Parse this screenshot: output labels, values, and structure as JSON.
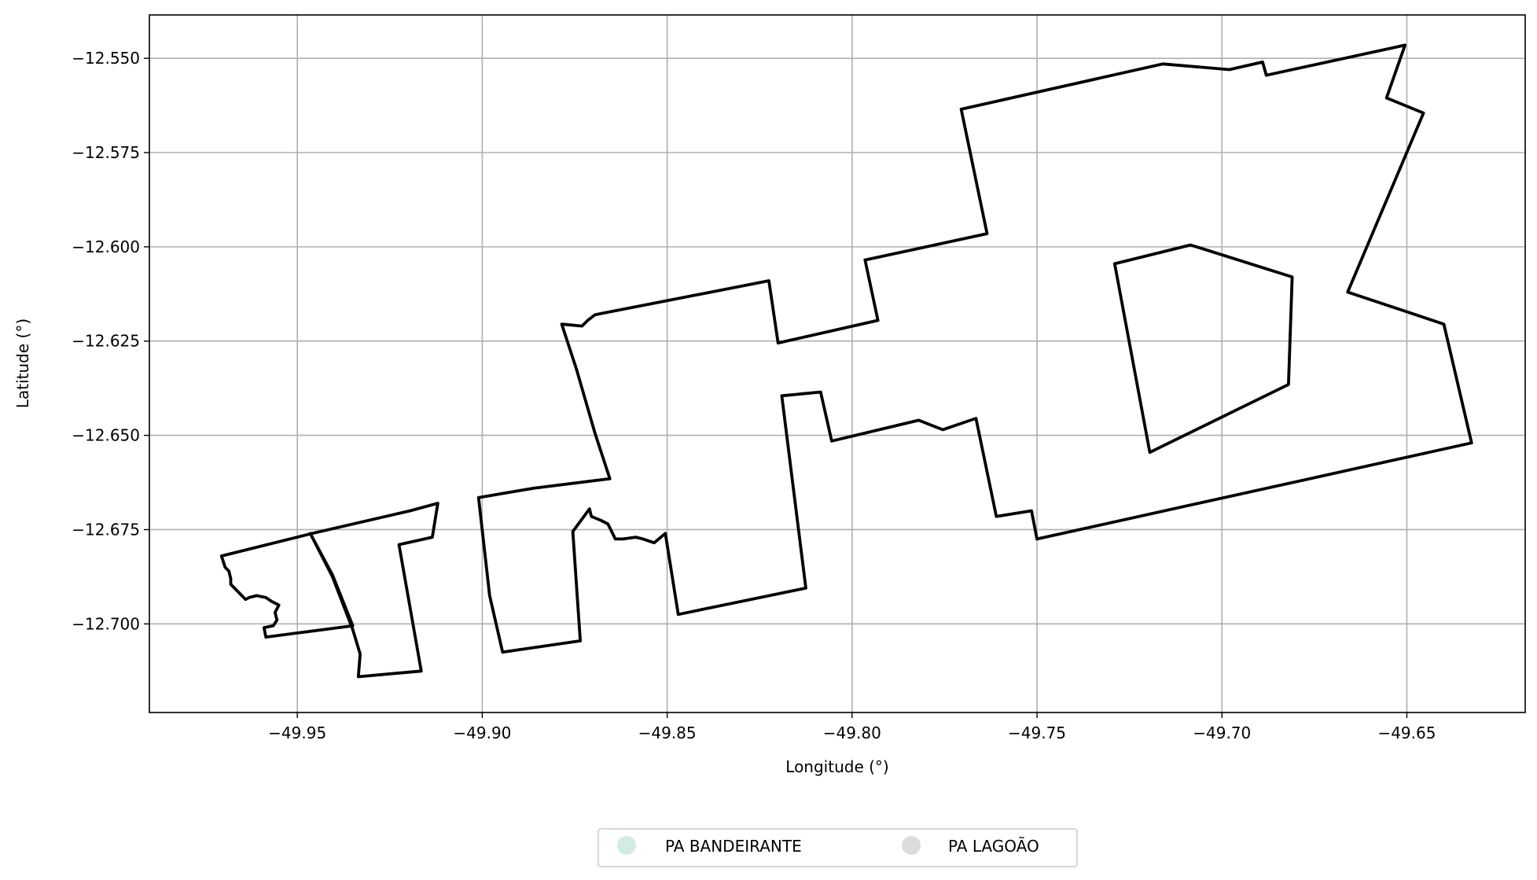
{
  "chart_data": {
    "type": "map",
    "xlabel": "Longitude (°)",
    "ylabel": "Latitude (°)",
    "xlim": [
      -49.99,
      -49.618
    ],
    "ylim": [
      -12.7235,
      -12.5385
    ],
    "xticks": [
      {
        "value": -49.95,
        "label": "−49.95"
      },
      {
        "value": -49.9,
        "label": "−49.90"
      },
      {
        "value": -49.85,
        "label": "−49.85"
      },
      {
        "value": -49.8,
        "label": "−49.80"
      },
      {
        "value": -49.75,
        "label": "−49.75"
      },
      {
        "value": -49.7,
        "label": "−49.70"
      },
      {
        "value": -49.65,
        "label": "−49.65"
      }
    ],
    "yticks": [
      {
        "value": -12.55,
        "label": "−12.550"
      },
      {
        "value": -12.575,
        "label": "−12.575"
      },
      {
        "value": -12.6,
        "label": "−12.600"
      },
      {
        "value": -12.625,
        "label": "−12.625"
      },
      {
        "value": -12.65,
        "label": "−12.650"
      },
      {
        "value": -12.675,
        "label": "−12.675"
      },
      {
        "value": -12.7,
        "label": "−12.700"
      }
    ],
    "grid": true,
    "legend_position": "bottom-center",
    "legend": [
      {
        "name": "PA BANDEIRANTE",
        "color": "#d2ece1"
      },
      {
        "name": "PA LAGOÃO",
        "color": "#dcdcdc"
      }
    ],
    "series": [
      {
        "name": "PA BANDEIRANTE",
        "outline_color": "#000000",
        "polygons": [
          [
            [
              -49.9705,
              -12.682
            ],
            [
              -49.946,
              -12.676
            ],
            [
              -49.9195,
              -12.67
            ],
            [
              -49.912,
              -12.668
            ],
            [
              -49.9135,
              -12.677
            ],
            [
              -49.9225,
              -12.679
            ],
            [
              -49.9165,
              -12.7125
            ],
            [
              -49.9335,
              -12.714
            ],
            [
              -49.933,
              -12.708
            ],
            [
              -49.935,
              -12.7015
            ],
            [
              -49.9405,
              -12.6875
            ],
            [
              -49.9465,
              -12.676
            ],
            [
              -49.9405,
              -12.687
            ],
            [
              -49.935,
              -12.7005
            ],
            [
              -49.9585,
              -12.7035
            ],
            [
              -49.959,
              -12.701
            ],
            [
              -49.9565,
              -12.7005
            ],
            [
              -49.9555,
              -12.699
            ],
            [
              -49.956,
              -12.697
            ],
            [
              -49.955,
              -12.695
            ],
            [
              -49.957,
              -12.694
            ],
            [
              -49.9585,
              -12.693
            ],
            [
              -49.961,
              -12.6925
            ],
            [
              -49.963,
              -12.693
            ],
            [
              -49.964,
              -12.6935
            ],
            [
              -49.9655,
              -12.692
            ],
            [
              -49.9665,
              -12.691
            ],
            [
              -49.968,
              -12.6895
            ],
            [
              -49.968,
              -12.688
            ],
            [
              -49.9685,
              -12.686
            ],
            [
              -49.9695,
              -12.685
            ],
            [
              -49.9705,
              -12.682
            ]
          ]
        ]
      },
      {
        "name": "PA LAGOÃO",
        "outline_color": "#000000",
        "polygons": [
          [
            [
              -49.901,
              -12.6665
            ],
            [
              -49.886,
              -12.664
            ],
            [
              -49.8655,
              -12.6615
            ],
            [
              -49.8695,
              -12.6495
            ],
            [
              -49.8745,
              -12.6325
            ],
            [
              -49.8785,
              -12.6205
            ],
            [
              -49.873,
              -12.621
            ],
            [
              -49.8715,
              -12.6195
            ],
            [
              -49.8695,
              -12.618
            ],
            [
              -49.8225,
              -12.609
            ],
            [
              -49.82,
              -12.6255
            ],
            [
              -49.793,
              -12.6195
            ],
            [
              -49.7965,
              -12.6035
            ],
            [
              -49.7635,
              -12.5965
            ],
            [
              -49.7705,
              -12.5635
            ],
            [
              -49.716,
              -12.5515
            ],
            [
              -49.698,
              -12.553
            ],
            [
              -49.689,
              -12.551
            ],
            [
              -49.688,
              -12.5545
            ],
            [
              -49.6505,
              -12.5465
            ],
            [
              -49.6555,
              -12.5605
            ],
            [
              -49.6455,
              -12.5645
            ],
            [
              -49.666,
              -12.612
            ],
            [
              -49.64,
              -12.6205
            ],
            [
              -49.6325,
              -12.652
            ],
            [
              -49.75,
              -12.6775
            ],
            [
              -49.7515,
              -12.67
            ],
            [
              -49.761,
              -12.6715
            ],
            [
              -49.7665,
              -12.6455
            ],
            [
              -49.7755,
              -12.6485
            ],
            [
              -49.782,
              -12.646
            ],
            [
              -49.8055,
              -12.6515
            ],
            [
              -49.8085,
              -12.6385
            ],
            [
              -49.819,
              -12.6395
            ],
            [
              -49.8125,
              -12.6905
            ],
            [
              -49.847,
              -12.6975
            ],
            [
              -49.8505,
              -12.676
            ],
            [
              -49.8535,
              -12.6785
            ],
            [
              -49.8565,
              -12.6775
            ],
            [
              -49.8585,
              -12.677
            ],
            [
              -49.862,
              -12.6775
            ],
            [
              -49.864,
              -12.6775
            ],
            [
              -49.866,
              -12.6735
            ],
            [
              -49.868,
              -12.6725
            ],
            [
              -49.8705,
              -12.6715
            ],
            [
              -49.871,
              -12.6695
            ],
            [
              -49.8755,
              -12.6755
            ],
            [
              -49.8735,
              -12.7045
            ],
            [
              -49.8945,
              -12.7075
            ],
            [
              -49.898,
              -12.6925
            ],
            [
              -49.901,
              -12.6665
            ]
          ],
          [
            [
              -49.729,
              -12.6045
            ],
            [
              -49.7085,
              -12.5995
            ],
            [
              -49.681,
              -12.608
            ],
            [
              -49.682,
              -12.6365
            ],
            [
              -49.7195,
              -12.6545
            ],
            [
              -49.729,
              -12.6045
            ]
          ]
        ]
      }
    ]
  }
}
